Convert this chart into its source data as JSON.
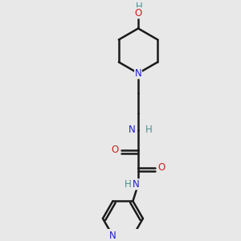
{
  "bg_color": "#e8e8e8",
  "bond_color": "#1a1a1a",
  "nitrogen_color": "#2020cc",
  "oxygen_color": "#cc2020",
  "hydrogen_color": "#4a9090",
  "line_width": 1.8,
  "font_size_atom": 8.5,
  "xlim": [
    0.05,
    0.95
  ],
  "ylim": [
    0.02,
    0.98
  ]
}
